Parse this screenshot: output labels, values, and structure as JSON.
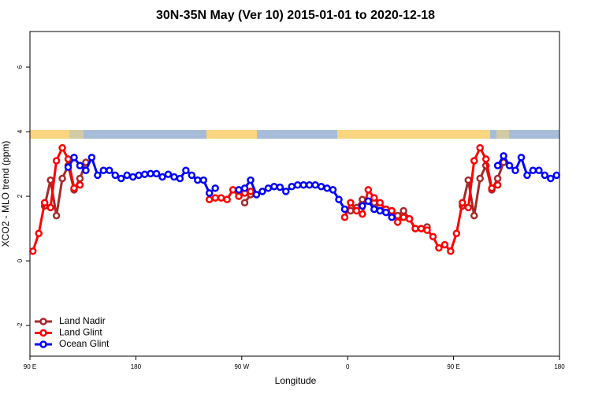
{
  "chart_data": {
    "type": "line",
    "title": "30N-35N May (Ver 10)   2015-01-01 to 2020-12-18",
    "x_label": "Longitude",
    "y_label": "XCO2 - MLO trend (ppm)",
    "xlim": [
      90,
      540
    ],
    "ylim": [
      -2.95,
      7.1
    ],
    "xticks": [
      {
        "value": 90,
        "label": "90 E"
      },
      180,
      {
        "value": 270,
        "label": "90 W"
      },
      {
        "value": 360,
        "label": "0"
      },
      {
        "value": 450,
        "label": "90 E"
      },
      {
        "value": 540,
        "label": "180"
      }
    ],
    "yticks": [
      -2,
      0,
      2,
      4,
      6
    ],
    "legend": "bottom-left",
    "x": [
      92.5,
      97.5,
      102.5,
      107.5,
      112.5,
      117.5,
      122.5,
      127.5,
      132.5,
      137.5,
      142.5,
      147.5,
      152.5,
      157.5,
      162.5,
      167.5,
      172.5,
      177.5,
      182.5,
      187.5,
      192.5,
      197.5,
      202.5,
      207.5,
      212.5,
      217.5,
      222.5,
      227.5,
      232.5,
      237.5,
      242.5,
      247.5,
      252.5,
      257.5,
      262.5,
      267.5,
      272.5,
      277.5,
      282.5,
      287.5,
      292.5,
      297.5,
      302.5,
      307.5,
      312.5,
      317.5,
      322.5,
      327.5,
      332.5,
      337.5,
      342.5,
      347.5,
      352.5,
      357.5,
      362.5,
      367.5,
      372.5,
      377.5,
      382.5,
      387.5,
      392.5,
      397.5,
      402.5,
      407.5,
      412.5,
      417.5,
      422.5,
      427.5,
      432.5,
      437.5,
      442.5,
      447.5,
      452.5,
      457.5,
      462.5,
      467.5,
      472.5,
      477.5,
      482.5,
      487.5,
      492.5,
      497.5,
      502.5,
      507.5,
      512.5,
      517.5,
      522.5,
      527.5,
      532.5,
      537.5
    ],
    "series": [
      {
        "name": "Land Nadir",
        "color": "#a52a2a",
        "values": [
          null,
          null,
          1.7,
          2.5,
          1.4,
          2.55,
          2.95,
          2.2,
          2.55,
          3.05,
          null,
          null,
          null,
          null,
          null,
          null,
          null,
          null,
          null,
          null,
          null,
          null,
          null,
          null,
          null,
          null,
          null,
          null,
          null,
          null,
          null,
          null,
          null,
          null,
          null,
          null,
          1.8,
          2.05,
          null,
          null,
          null,
          null,
          null,
          null,
          null,
          null,
          null,
          null,
          null,
          null,
          null,
          null,
          null,
          null,
          1.55,
          1.65,
          1.9,
          1.85,
          1.8,
          1.7,
          1.6,
          1.55,
          1.4,
          1.55,
          1.3,
          1.0,
          1.0,
          1.05,
          null,
          null,
          null,
          null,
          null,
          1.7,
          2.5,
          1.4,
          2.55,
          2.95,
          2.2,
          2.55,
          3.05,
          null,
          null,
          null,
          null,
          null,
          null,
          null,
          null,
          null
        ]
      },
      {
        "name": "Land Glint",
        "color": "#ff0000",
        "values": [
          0.3,
          0.85,
          1.8,
          1.65,
          3.1,
          3.5,
          3.15,
          2.25,
          2.35,
          null,
          null,
          null,
          null,
          null,
          null,
          null,
          null,
          null,
          null,
          null,
          null,
          null,
          null,
          null,
          null,
          null,
          null,
          null,
          null,
          null,
          1.9,
          1.95,
          1.95,
          1.9,
          2.2,
          2.0,
          2.1,
          2.15,
          null,
          null,
          null,
          null,
          null,
          null,
          null,
          null,
          null,
          null,
          null,
          null,
          null,
          null,
          null,
          1.35,
          1.8,
          1.55,
          1.45,
          2.2,
          1.95,
          1.8,
          1.6,
          1.55,
          1.2,
          1.35,
          1.3,
          1.0,
          1.0,
          0.95,
          0.75,
          0.4,
          0.5,
          0.3,
          0.85,
          1.8,
          1.65,
          3.1,
          3.5,
          3.15,
          2.25,
          2.35,
          null,
          null,
          null,
          null,
          null,
          null,
          null,
          null,
          null,
          null
        ]
      },
      {
        "name": "Ocean Glint",
        "color": "#0000ff",
        "values": [
          null,
          null,
          null,
          null,
          null,
          null,
          2.9,
          3.2,
          2.95,
          2.8,
          3.2,
          2.65,
          2.8,
          2.8,
          2.65,
          2.55,
          2.65,
          2.6,
          2.65,
          2.68,
          2.7,
          2.7,
          2.6,
          2.68,
          2.6,
          2.55,
          2.8,
          2.65,
          2.5,
          2.5,
          2.1,
          2.25,
          null,
          null,
          null,
          2.2,
          2.25,
          2.5,
          2.05,
          2.15,
          2.25,
          2.3,
          2.28,
          2.15,
          2.3,
          2.35,
          2.35,
          2.35,
          2.35,
          2.3,
          2.25,
          2.2,
          1.9,
          1.6,
          null,
          null,
          1.7,
          1.85,
          1.6,
          1.55,
          1.5,
          1.35,
          null,
          null,
          null,
          null,
          null,
          null,
          null,
          null,
          null,
          null,
          null,
          null,
          null,
          null,
          null,
          null,
          null,
          2.95,
          3.25,
          2.95,
          2.8,
          3.2,
          2.65,
          2.8,
          2.8,
          2.65,
          2.55,
          2.65
        ]
      }
    ]
  }
}
